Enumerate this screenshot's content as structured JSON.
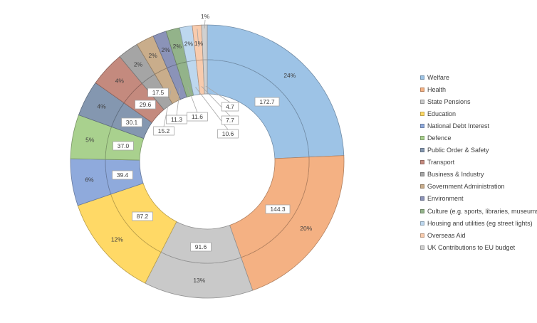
{
  "chart_data": {
    "type": "donut",
    "categories": [
      "Welfare",
      "Health",
      "State Pensions",
      "Education",
      "National Debt Interest",
      "Defence",
      "Public Order & Safety",
      "Transport",
      "Business & Industry",
      "Government Administration",
      "Environment",
      "Culture (e.g. sports, libraries, museums)",
      "Housing and utilities (eg street lights)",
      "Overseas Aid",
      "UK Contributions to EU budget"
    ],
    "colors": [
      "#9dc3e6",
      "#f4b183",
      "#c9c9c9",
      "#ffd966",
      "#8faadc",
      "#a9d18e",
      "#8497b0",
      "#c48a7e",
      "#a5a5a5",
      "#c9ad8b",
      "#8b93b8",
      "#93b38a",
      "#bdd7ee",
      "#f8cbad",
      "#d0d0d0"
    ],
    "series": [
      {
        "ring": "inner",
        "values": [
          172.7,
          144.3,
          91.6,
          87.2,
          39.4,
          37.0,
          30.1,
          29.6,
          17.5,
          15.2,
          11.3,
          11.6,
          10.6,
          7.7,
          4.7
        ],
        "labels": [
          "172.7",
          "144.3",
          "91.6",
          "87.2",
          "39.4",
          "37.0",
          "30.1",
          "29.6",
          "17.5",
          "15.2",
          "11.3",
          "11.6",
          "10.6",
          "7.7",
          "4.7"
        ]
      },
      {
        "ring": "outer",
        "values": [
          24,
          20,
          13,
          12,
          6,
          5,
          4,
          4,
          2,
          2,
          2,
          2,
          2,
          1,
          1
        ],
        "labels": [
          "24%",
          "20%",
          "13%",
          "12%",
          "6%",
          "5%",
          "4%",
          "4%",
          "2%",
          "2%",
          "2%",
          "2%",
          "2%",
          "1%",
          "1%"
        ]
      }
    ],
    "legend_position": "right"
  }
}
